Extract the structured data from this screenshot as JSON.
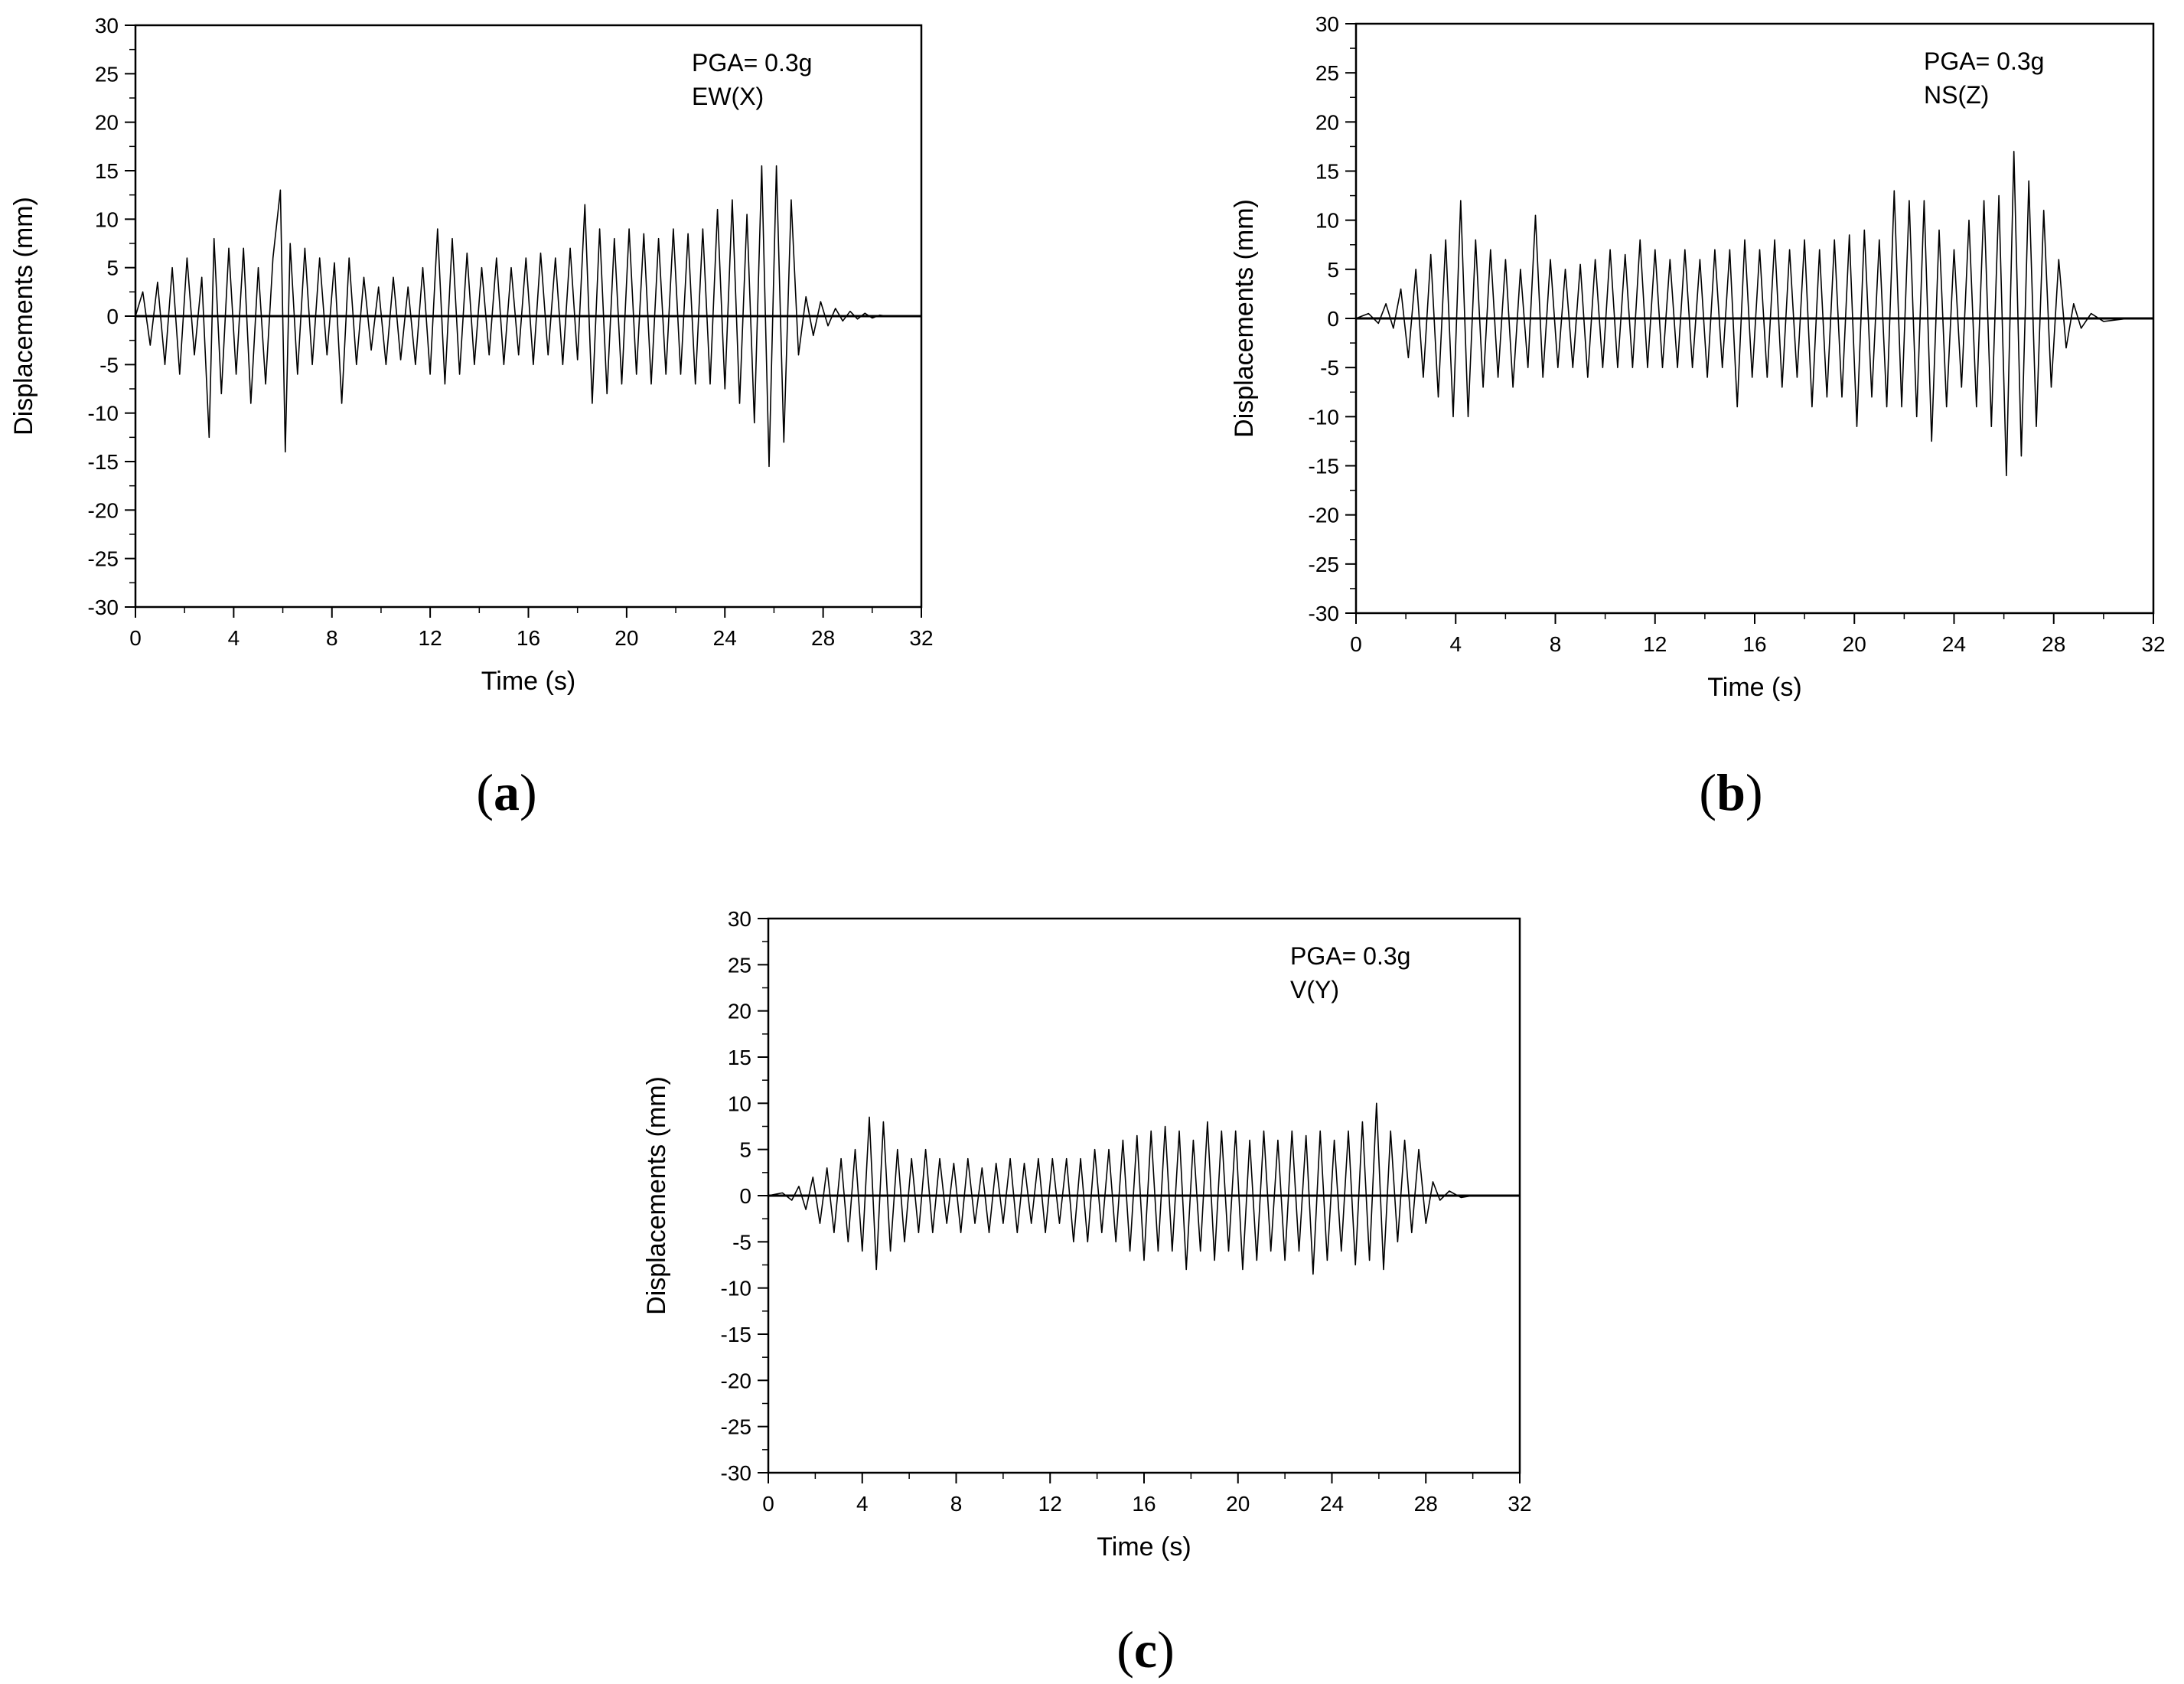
{
  "chart_data": [
    {
      "type": "line",
      "panel_label": "a",
      "annotation": [
        "PGA= 0.3g",
        "EW(X)"
      ],
      "xlabel": "Time (s)",
      "ylabel": "Displacements (mm)",
      "xlim": [
        0,
        32
      ],
      "ylim": [
        -30,
        30
      ],
      "x_ticks": [
        0,
        4,
        8,
        12,
        16,
        20,
        24,
        28,
        32
      ],
      "y_ticks": [
        30,
        25,
        20,
        15,
        10,
        5,
        0,
        -5,
        -10,
        -15,
        -20,
        -25,
        -30
      ],
      "grid": false,
      "legend": "none",
      "series": [
        {
          "x": [
            0,
            0.3,
            0.6,
            0.9,
            1.2,
            1.5,
            1.8,
            2.1,
            2.4,
            2.7,
            3.0,
            3.2,
            3.5,
            3.8,
            4.1,
            4.4,
            4.7,
            5.0,
            5.3,
            5.6,
            5.9,
            6.1,
            6.3,
            6.6,
            6.9,
            7.2,
            7.5,
            7.8,
            8.1,
            8.4,
            8.7,
            9.0,
            9.3,
            9.6,
            9.9,
            10.2,
            10.5,
            10.8,
            11.1,
            11.4,
            11.7,
            12.0,
            12.3,
            12.6,
            12.9,
            13.2,
            13.5,
            13.8,
            14.1,
            14.4,
            14.7,
            15.0,
            15.3,
            15.6,
            15.9,
            16.2,
            16.5,
            16.8,
            17.1,
            17.4,
            17.7,
            18.0,
            18.3,
            18.6,
            18.9,
            19.2,
            19.5,
            19.8,
            20.1,
            20.4,
            20.7,
            21.0,
            21.3,
            21.6,
            21.9,
            22.2,
            22.5,
            22.8,
            23.1,
            23.4,
            23.7,
            24.0,
            24.3,
            24.6,
            24.9,
            25.2,
            25.5,
            25.8,
            26.1,
            26.4,
            26.7,
            27.0,
            27.3,
            27.6,
            27.9,
            28.2,
            28.5,
            28.8,
            29.1,
            29.4,
            29.7,
            30.0,
            30.3,
            30.6,
            31.0,
            32.0
          ],
          "y": [
            0,
            2.5,
            -3,
            3.5,
            -5,
            5,
            -6,
            6,
            -4,
            4,
            -12.5,
            8,
            -8,
            7,
            -6,
            7,
            -9,
            5,
            -7,
            6,
            13,
            -14,
            7.5,
            -6,
            7,
            -5,
            6,
            -4,
            5.5,
            -9,
            6,
            -5,
            4,
            -3.5,
            3,
            -5,
            4,
            -4.5,
            3,
            -5,
            5,
            -6,
            9,
            -7,
            8,
            -6,
            6.5,
            -5,
            5,
            -4,
            6,
            -5,
            5,
            -4,
            6,
            -5,
            6.5,
            -4,
            6,
            -5,
            7,
            -4.5,
            11.5,
            -9,
            9,
            -8,
            8,
            -7,
            9,
            -6,
            8.5,
            -7,
            8,
            -6,
            9,
            -6,
            8.5,
            -7,
            9,
            -7,
            11,
            -7.5,
            12,
            -9,
            10.5,
            -11,
            15.5,
            -15.5,
            15.5,
            -13,
            12,
            -4,
            2,
            -2,
            1.5,
            -1,
            0.8,
            -0.5,
            0.5,
            -0.3,
            0.3,
            -0.2,
            0.1,
            0,
            0,
            0
          ]
        }
      ]
    },
    {
      "type": "line",
      "panel_label": "b",
      "annotation": [
        "PGA= 0.3g",
        "NS(Z)"
      ],
      "xlabel": "Time (s)",
      "ylabel": "Displacements (mm)",
      "xlim": [
        0,
        32
      ],
      "ylim": [
        -30,
        30
      ],
      "x_ticks": [
        0,
        4,
        8,
        12,
        16,
        20,
        24,
        28,
        32
      ],
      "y_ticks": [
        30,
        25,
        20,
        15,
        10,
        5,
        0,
        -5,
        -10,
        -15,
        -20,
        -25,
        -30
      ],
      "grid": false,
      "legend": "none",
      "series": [
        {
          "x": [
            0,
            0.5,
            0.9,
            1.2,
            1.5,
            1.8,
            2.1,
            2.4,
            2.7,
            3.0,
            3.3,
            3.6,
            3.9,
            4.2,
            4.5,
            4.8,
            5.1,
            5.4,
            5.7,
            6.0,
            6.3,
            6.6,
            6.9,
            7.2,
            7.5,
            7.8,
            8.1,
            8.4,
            8.7,
            9.0,
            9.3,
            9.6,
            9.9,
            10.2,
            10.5,
            10.8,
            11.1,
            11.4,
            11.7,
            12.0,
            12.3,
            12.6,
            12.9,
            13.2,
            13.5,
            13.8,
            14.1,
            14.4,
            14.7,
            15.0,
            15.3,
            15.6,
            15.9,
            16.2,
            16.5,
            16.8,
            17.1,
            17.4,
            17.7,
            18.0,
            18.3,
            18.6,
            18.9,
            19.2,
            19.5,
            19.8,
            20.1,
            20.4,
            20.7,
            21.0,
            21.3,
            21.6,
            21.9,
            22.2,
            22.5,
            22.8,
            23.1,
            23.4,
            23.7,
            24.0,
            24.3,
            24.6,
            24.9,
            25.2,
            25.5,
            25.8,
            26.1,
            26.4,
            26.7,
            27.0,
            27.3,
            27.6,
            27.9,
            28.2,
            28.5,
            28.8,
            29.1,
            29.5,
            30.0,
            31.0,
            32.0
          ],
          "y": [
            0,
            0.5,
            -0.5,
            1.5,
            -1,
            3,
            -4,
            5,
            -6,
            6.5,
            -8,
            8,
            -10,
            12,
            -10,
            8,
            -7,
            7,
            -6,
            6,
            -7,
            5,
            -5,
            10.5,
            -6,
            6,
            -5,
            5,
            -5,
            5.5,
            -6,
            6,
            -5,
            7,
            -5,
            6.5,
            -5,
            8,
            -5,
            7,
            -5,
            6,
            -5,
            7,
            -5,
            6,
            -6,
            7,
            -5,
            7,
            -9,
            8,
            -6,
            7,
            -6,
            8,
            -7,
            7,
            -6,
            8,
            -9,
            7,
            -8,
            8,
            -8,
            8.5,
            -11,
            9,
            -8,
            8,
            -9,
            13,
            -9,
            12,
            -10,
            12,
            -12.5,
            9,
            -9,
            7,
            -7,
            10,
            -9,
            12,
            -11,
            12.5,
            -16,
            17,
            -14,
            14,
            -11,
            11,
            -7,
            6,
            -3,
            1.5,
            -1,
            0.5,
            -0.3,
            0,
            0
          ]
        }
      ]
    },
    {
      "type": "line",
      "panel_label": "c",
      "annotation": [
        "PGA= 0.3g",
        "V(Y)"
      ],
      "xlabel": "Time (s)",
      "ylabel": "Displacements (mm)",
      "xlim": [
        0,
        32
      ],
      "ylim": [
        -30,
        30
      ],
      "x_ticks": [
        0,
        4,
        8,
        12,
        16,
        20,
        24,
        28,
        32
      ],
      "y_ticks": [
        30,
        25,
        20,
        15,
        10,
        5,
        0,
        -5,
        -10,
        -15,
        -20,
        -25,
        -30
      ],
      "grid": false,
      "legend": "none",
      "series": [
        {
          "x": [
            0,
            0.6,
            1.0,
            1.3,
            1.6,
            1.9,
            2.2,
            2.5,
            2.8,
            3.1,
            3.4,
            3.7,
            4.0,
            4.3,
            4.6,
            4.9,
            5.2,
            5.5,
            5.8,
            6.1,
            6.4,
            6.7,
            7.0,
            7.3,
            7.6,
            7.9,
            8.2,
            8.5,
            8.8,
            9.1,
            9.4,
            9.7,
            10.0,
            10.3,
            10.6,
            10.9,
            11.2,
            11.5,
            11.8,
            12.1,
            12.4,
            12.7,
            13.0,
            13.3,
            13.6,
            13.9,
            14.2,
            14.5,
            14.8,
            15.1,
            15.4,
            15.7,
            16.0,
            16.3,
            16.6,
            16.9,
            17.2,
            17.5,
            17.8,
            18.1,
            18.4,
            18.7,
            19.0,
            19.3,
            19.6,
            19.9,
            20.2,
            20.5,
            20.8,
            21.1,
            21.4,
            21.7,
            22.0,
            22.3,
            22.6,
            22.9,
            23.2,
            23.5,
            23.8,
            24.1,
            24.4,
            24.7,
            25.0,
            25.3,
            25.6,
            25.9,
            26.2,
            26.5,
            26.8,
            27.1,
            27.4,
            27.7,
            28.0,
            28.3,
            28.6,
            29.0,
            29.5,
            30.0,
            32.0
          ],
          "y": [
            0,
            0.3,
            -0.5,
            1,
            -1.5,
            2,
            -3,
            3,
            -4,
            4,
            -5,
            5,
            -6,
            8.5,
            -8,
            8,
            -6,
            5,
            -5,
            4,
            -4,
            5,
            -4,
            4,
            -3,
            3.5,
            -4,
            4,
            -3,
            3,
            -4,
            3.5,
            -3,
            4,
            -4,
            3.5,
            -3,
            4,
            -4,
            4,
            -3,
            4,
            -5,
            4,
            -5,
            5,
            -4,
            5,
            -5,
            6,
            -6,
            6.5,
            -7,
            7,
            -6,
            7.5,
            -6,
            7,
            -8,
            6,
            -6,
            8,
            -7,
            7,
            -6,
            7,
            -8,
            6,
            -7,
            7,
            -6,
            6,
            -7,
            7,
            -6,
            6.5,
            -8.5,
            7,
            -7,
            6,
            -6,
            7,
            -7.5,
            8,
            -7,
            10,
            -8,
            7,
            -5,
            6,
            -4,
            5,
            -3,
            1.5,
            -0.5,
            0.5,
            -0.2,
            0,
            0
          ]
        }
      ]
    }
  ]
}
